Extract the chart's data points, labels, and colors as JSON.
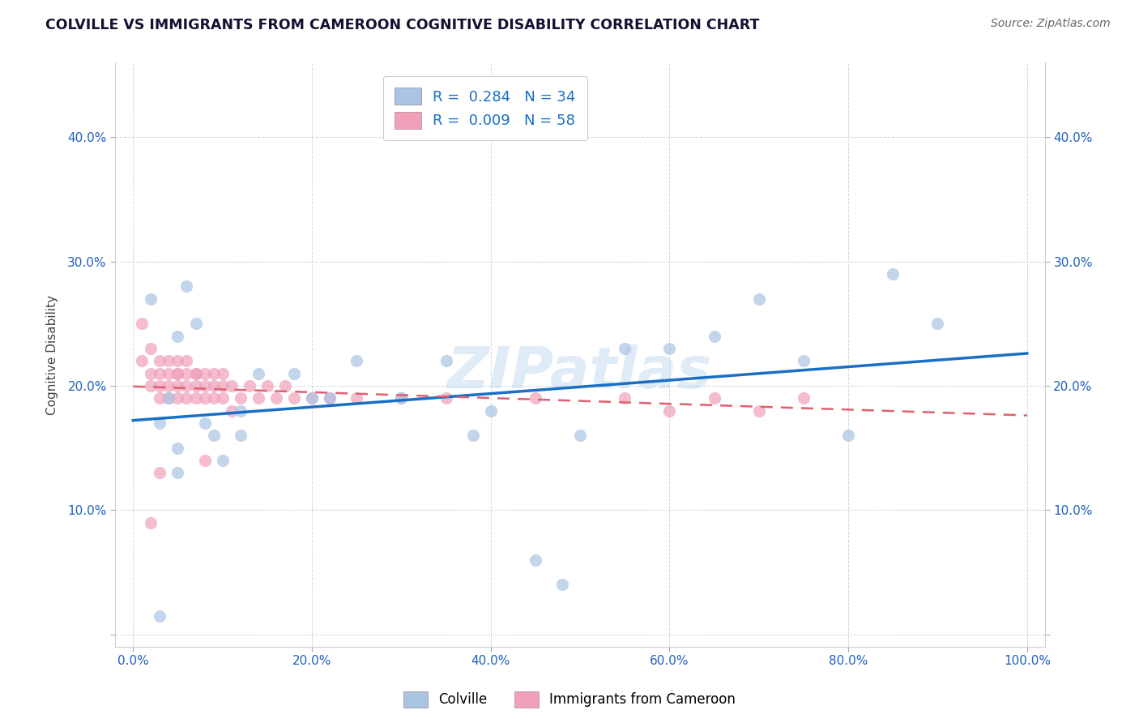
{
  "title": "COLVILLE VS IMMIGRANTS FROM CAMEROON COGNITIVE DISABILITY CORRELATION CHART",
  "source": "Source: ZipAtlas.com",
  "ylabel": "Cognitive Disability",
  "xlim": [
    -2,
    102
  ],
  "ylim": [
    -1,
    46
  ],
  "xticks": [
    0,
    20,
    40,
    60,
    80,
    100
  ],
  "xticklabels": [
    "0.0%",
    "20.0%",
    "40.0%",
    "60.0%",
    "80.0%",
    "100.0%"
  ],
  "yticks": [
    0,
    10,
    20,
    30,
    40
  ],
  "yticklabels": [
    "",
    "10.0%",
    "20.0%",
    "30.0%",
    "40.0%"
  ],
  "color_blue": "#aac4e2",
  "color_pink": "#f0a0b8",
  "trendline_blue": "#1a6fc4",
  "trendline_pink": "#e06070",
  "watermark": "ZIPatlas",
  "blue_x": [
    3,
    2,
    6,
    4,
    5,
    7,
    9,
    12,
    8,
    14,
    5,
    10,
    18,
    20,
    25,
    30,
    35,
    40,
    50,
    55,
    60,
    65,
    70,
    75,
    80,
    85,
    90,
    45,
    48,
    38,
    22,
    12,
    5,
    3
  ],
  "blue_y": [
    1.5,
    27,
    28,
    19,
    24,
    25,
    16,
    18,
    17,
    21,
    13,
    14,
    21,
    19,
    22,
    19,
    22,
    18,
    16,
    23,
    23,
    24,
    27,
    22,
    16,
    29,
    25,
    6,
    4,
    16,
    19,
    16,
    15,
    17
  ],
  "pink_x": [
    1,
    1,
    2,
    2,
    2,
    3,
    3,
    3,
    3,
    4,
    4,
    4,
    4,
    5,
    5,
    5,
    5,
    5,
    6,
    6,
    6,
    6,
    7,
    7,
    7,
    7,
    8,
    8,
    8,
    9,
    9,
    9,
    10,
    10,
    10,
    11,
    11,
    12,
    13,
    14,
    15,
    16,
    17,
    18,
    20,
    22,
    25,
    30,
    35,
    45,
    55,
    65,
    70,
    75,
    60,
    2,
    3,
    8
  ],
  "pink_y": [
    22,
    25,
    20,
    21,
    23,
    20,
    22,
    21,
    19,
    21,
    22,
    20,
    19,
    21,
    22,
    20,
    19,
    21,
    20,
    21,
    19,
    22,
    21,
    20,
    19,
    21,
    20,
    19,
    21,
    20,
    21,
    19,
    21,
    20,
    19,
    20,
    18,
    19,
    20,
    19,
    20,
    19,
    20,
    19,
    19,
    19,
    19,
    19,
    19,
    19,
    19,
    19,
    18,
    19,
    18,
    9,
    13,
    14
  ]
}
